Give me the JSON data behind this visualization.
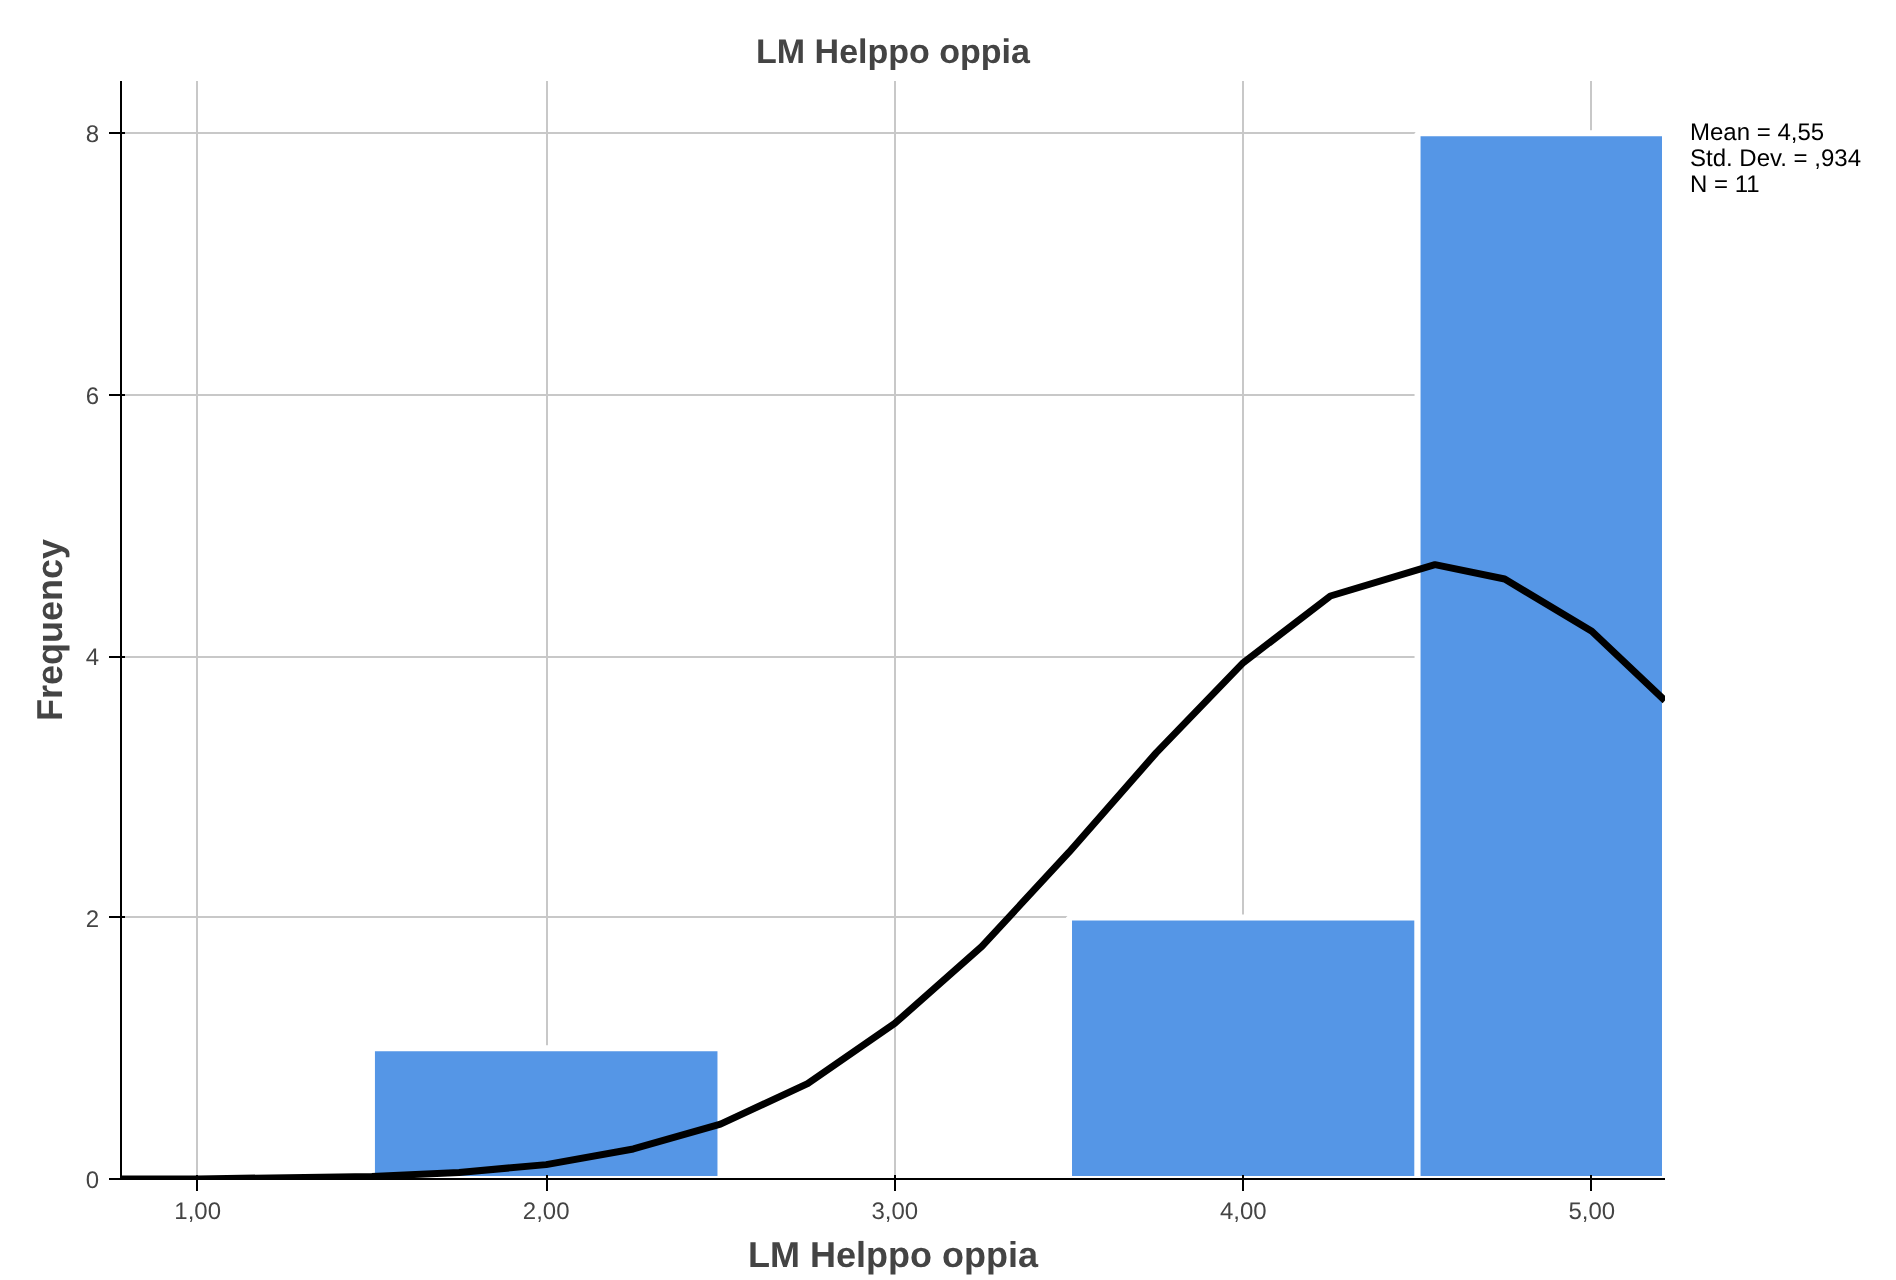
{
  "chart_data": {
    "type": "histogram",
    "title": "LM Helppo oppia",
    "xlabel": "LM Helppo oppia",
    "ylabel": "Frequency",
    "series": [
      {
        "color": "#5596e6",
        "bins": [
          1.5,
          2.5,
          3.5,
          4.5,
          5.21
        ],
        "values": [
          1,
          0,
          2,
          8
        ]
      },
      {
        "type": "line",
        "color": "#000000",
        "x": [
          0.78,
          1.0,
          1.5,
          1.75,
          2.0,
          2.25,
          2.5,
          2.75,
          3.0,
          3.25,
          3.5,
          3.75,
          4.0,
          4.25,
          4.55,
          4.75,
          5.0,
          5.21
        ],
        "values": [
          0.0,
          0.0,
          0.02,
          0.05,
          0.11,
          0.23,
          0.42,
          0.73,
          1.19,
          1.78,
          2.5,
          3.26,
          3.95,
          4.46,
          4.7,
          4.59,
          4.19,
          3.66
        ]
      }
    ],
    "xlim": [
      0.78,
      5.21
    ],
    "xticks": [
      {
        "value": 1,
        "label": "1,00"
      },
      {
        "value": 2,
        "label": "2,00"
      },
      {
        "value": 3,
        "label": "3,00"
      },
      {
        "value": 4,
        "label": "4,00"
      },
      {
        "value": 5,
        "label": "5,00"
      }
    ],
    "ylim": [
      0,
      8.4
    ],
    "yticks": [
      0,
      2,
      4,
      6,
      8
    ],
    "grid": true,
    "annotations": [
      "Mean = 4,55",
      "Std. Dev. = ,934",
      "N = 11"
    ]
  }
}
